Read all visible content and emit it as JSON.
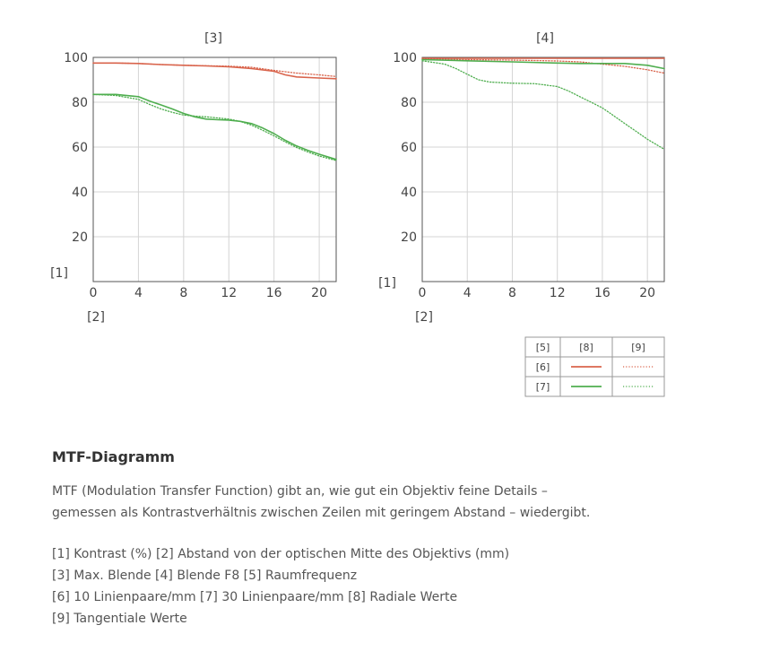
{
  "chart_data": [
    {
      "type": "line",
      "title": "[3]",
      "ylabel": "[1]",
      "xlabel": "[2]",
      "xlim": [
        0,
        21.5
      ],
      "ylim": [
        0,
        100
      ],
      "xticks": [
        0,
        4,
        8,
        12,
        16,
        20
      ],
      "yticks": [
        20,
        40,
        60,
        80,
        100
      ],
      "grid": true,
      "series": [
        {
          "name": "[6] [8]",
          "color": "#d9644c",
          "style": "solid",
          "x": [
            0,
            2,
            4,
            6,
            8,
            10,
            12,
            14,
            16,
            17,
            18,
            20,
            21.5
          ],
          "y": [
            97.5,
            97.5,
            97.3,
            96.8,
            96.5,
            96.2,
            95.8,
            95,
            93.8,
            92.2,
            91.3,
            90.8,
            90.5
          ]
        },
        {
          "name": "[6] [9]",
          "color": "#d9644c",
          "style": "dotted",
          "x": [
            0,
            2,
            4,
            6,
            8,
            10,
            12,
            14,
            16,
            18,
            20,
            21.5
          ],
          "y": [
            97.5,
            97.5,
            97.3,
            96.8,
            96.5,
            96.3,
            96.1,
            95.6,
            94.2,
            93,
            92.2,
            91.5
          ]
        },
        {
          "name": "[7] [8]",
          "color": "#4fae4f",
          "style": "solid",
          "x": [
            0,
            2,
            4,
            5,
            6,
            7,
            8,
            9,
            10,
            11,
            12,
            13,
            14,
            15,
            16,
            17,
            18,
            19,
            20,
            21.5
          ],
          "y": [
            83.5,
            83.5,
            82.5,
            80.5,
            78.8,
            77,
            75,
            73.5,
            72.5,
            72.2,
            72,
            71.5,
            70.5,
            68.5,
            66,
            63,
            60.5,
            58.5,
            56.8,
            54.5
          ]
        },
        {
          "name": "[7] [9]",
          "color": "#4fae4f",
          "style": "dotted",
          "x": [
            0,
            2,
            4,
            5,
            6,
            7,
            8,
            9,
            10,
            11,
            12,
            13,
            14,
            15,
            16,
            17,
            18,
            19,
            20,
            21.5
          ],
          "y": [
            83.5,
            83,
            81.3,
            79,
            77,
            75.5,
            74.3,
            73.8,
            73.5,
            73,
            72.5,
            71.5,
            69.8,
            67.5,
            65,
            62.3,
            59.8,
            57.8,
            56,
            54
          ]
        }
      ]
    },
    {
      "type": "line",
      "title": "[4]",
      "ylabel": "[1]",
      "xlabel": "[2]",
      "xlim": [
        0,
        21.5
      ],
      "ylim": [
        0,
        100
      ],
      "xticks": [
        0,
        4,
        8,
        12,
        16,
        20
      ],
      "yticks": [
        20,
        40,
        60,
        80,
        100
      ],
      "grid": true,
      "series": [
        {
          "name": "[6] [8]",
          "color": "#d9644c",
          "style": "solid",
          "x": [
            0,
            4,
            8,
            12,
            16,
            20,
            21.5
          ],
          "y": [
            99.6,
            99.6,
            99.6,
            99.6,
            99.6,
            99.6,
            99.6
          ]
        },
        {
          "name": "[6] [9]",
          "color": "#d9644c",
          "style": "dotted",
          "x": [
            0,
            4,
            8,
            12,
            14,
            16,
            18,
            20,
            21.5
          ],
          "y": [
            99.3,
            99,
            98.8,
            98.4,
            98,
            97,
            96,
            94.5,
            93
          ]
        },
        {
          "name": "[7] [8]",
          "color": "#4fae4f",
          "style": "solid",
          "x": [
            0,
            4,
            8,
            12,
            14,
            16,
            18,
            20,
            21.5
          ],
          "y": [
            99,
            98.5,
            98,
            97.5,
            97.3,
            97.3,
            97.3,
            96.5,
            95
          ]
        },
        {
          "name": "[7] [9]",
          "color": "#4fae4f",
          "style": "dotted",
          "x": [
            0,
            2,
            3,
            4,
            5,
            6,
            8,
            10,
            12,
            13,
            14,
            15,
            16,
            17,
            18,
            19,
            20,
            21.5
          ],
          "y": [
            98.5,
            97,
            95,
            92.5,
            90,
            89,
            88.5,
            88.3,
            87,
            85,
            82.5,
            80,
            77.5,
            74,
            70.5,
            67,
            63.5,
            59
          ]
        }
      ]
    }
  ],
  "legend": {
    "header": [
      "[5]",
      "[8]",
      "[9]"
    ],
    "rows": [
      {
        "label": "[6]",
        "color": "#d9644c"
      },
      {
        "label": "[7]",
        "color": "#4fae4f"
      }
    ]
  },
  "description": {
    "title": "MTF-Diagramm",
    "intro_term": "MTF",
    "intro_line1": " (Modulation Transfer Function) gibt an, wie gut ein Objektiv feine Details –",
    "intro_line2": "gemessen als Kontrastverhältnis zwischen Zeilen mit geringem Abstand – wiedergibt.",
    "notes": [
      "[1] Kontrast (%) [2] Abstand von der optischen Mitte des Objektivs (mm)",
      "[3] Max. Blende [4] Blende F8 [5] Raumfrequenz",
      "[6] 10 Linienpaare/mm [7] 30 Linienpaare/mm [8] Radiale Werte",
      "[9] Tangentiale Werte"
    ]
  }
}
